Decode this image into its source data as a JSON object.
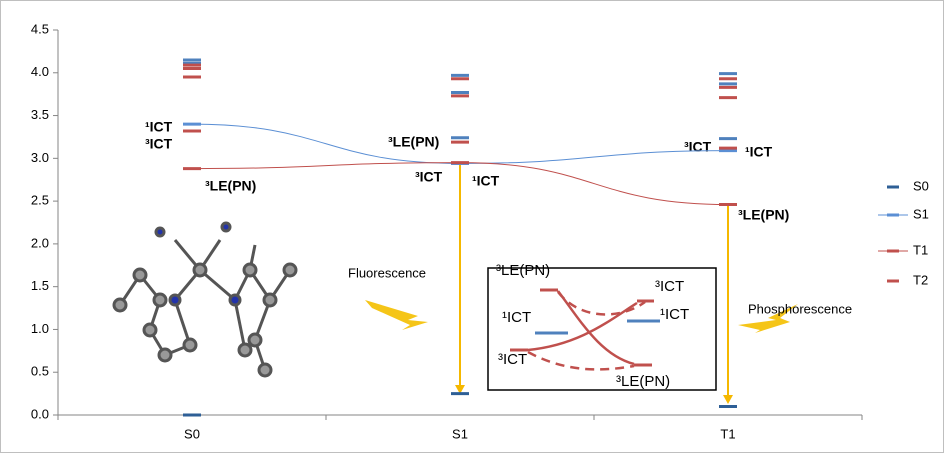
{
  "chart_data": {
    "type": "levels",
    "categories": [
      "S0",
      "S1",
      "T1"
    ],
    "ylim": [
      0,
      4.5
    ],
    "yticks": [
      {
        "value": 0,
        "label": "0.0"
      },
      0.5,
      {
        "value": 1,
        "label": "1.0"
      },
      1.5,
      {
        "value": 2,
        "label": "2.0"
      },
      2.5,
      {
        "value": 3,
        "label": "3.0"
      },
      3.5,
      {
        "value": 4,
        "label": "4.0"
      },
      4.5
    ],
    "series": [
      {
        "name": "S0",
        "color": "#2e5f96",
        "line": false,
        "values": [
          0.0,
          0.25,
          0.1
        ]
      },
      {
        "name": "S1",
        "color": "#5b8fd4",
        "line": true,
        "values": [
          3.4,
          2.94,
          3.09
        ]
      },
      {
        "name": "T1",
        "color": "#c0504d",
        "line": true,
        "values": [
          2.88,
          2.95,
          2.46
        ]
      },
      {
        "name": "T2",
        "color": "#c0504d",
        "line": false,
        "values": [
          3.32,
          3.19,
          3.12
        ]
      },
      {
        "color": "#4f81bd",
        "line": false,
        "values": [
          4.11,
          3.24,
          3.23
        ]
      },
      {
        "color": "#4f81bd",
        "line": false,
        "values": [
          4.15,
          3.77,
          3.87
        ]
      },
      {
        "color": "#4f81bd",
        "line": false,
        "values": [
          null,
          3.97,
          3.99
        ]
      },
      {
        "color": "#c0504d",
        "line": false,
        "values": [
          3.95,
          3.73,
          3.71
        ]
      },
      {
        "color": "#c0504d",
        "line": false,
        "values": [
          4.05,
          3.93,
          3.83
        ]
      },
      {
        "color": "#c0504d",
        "line": false,
        "values": [
          4.09,
          null,
          3.93
        ]
      }
    ],
    "annotations": [
      "¹ICT",
      "³ICT",
      "³LE(PN)",
      "³LE(PN)",
      "³ICT",
      "¹ICT",
      "³ICT",
      "¹ICT",
      "³LE(PN)",
      "Fluorescence",
      "Phosphorescence",
      "³LE(PN)",
      "³ICT",
      "¹ICT",
      "¹ICT",
      "³ICT",
      "³LE(PN)"
    ]
  }
}
